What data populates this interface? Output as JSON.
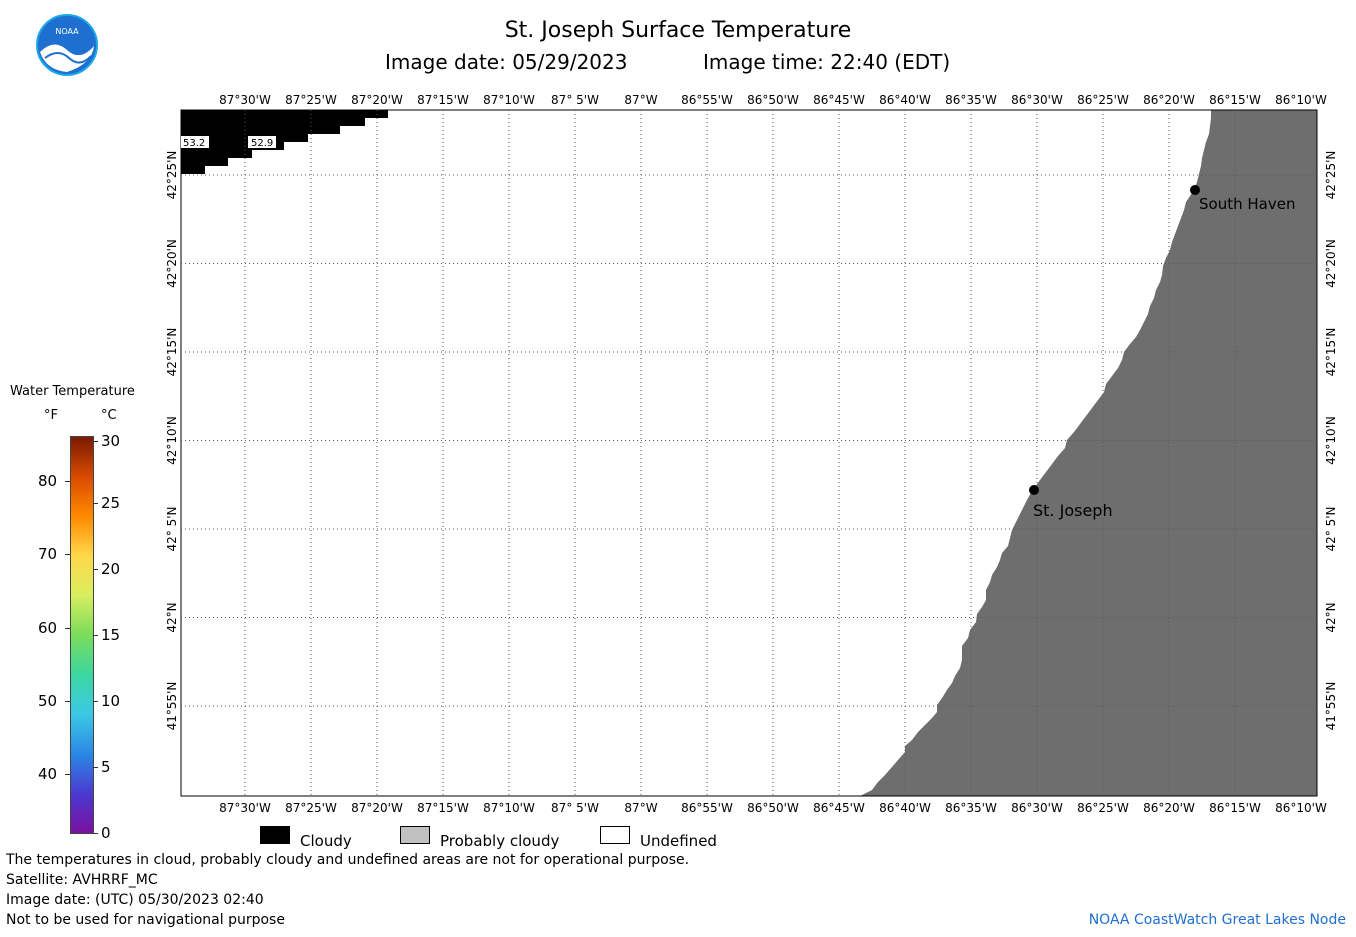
{
  "header": {
    "title": "St. Joseph Surface Temperature",
    "image_date_label": "Image date: 05/29/2023",
    "image_time_label": "Image time: 22:40 (EDT)",
    "logo_text": "NOAA"
  },
  "map": {
    "lon_labels": [
      "87°30'W",
      "87°25'W",
      "87°20'W",
      "87°15'W",
      "87°10'W",
      "87° 5'W",
      "87°W",
      "86°55'W",
      "86°50'W",
      "86°45'W",
      "86°40'W",
      "86°35'W",
      "86°30'W",
      "86°25'W",
      "86°20'W",
      "86°15'W",
      "86°10'W"
    ],
    "lat_labels": [
      "42°25'N",
      "42°20'N",
      "42°15'N",
      "42°10'N",
      "42° 5'N",
      "42°N",
      "41°55'N"
    ],
    "cities": [
      {
        "name": "South Haven"
      },
      {
        "name": "St. Joseph"
      }
    ],
    "cloud_values": [
      "53.2",
      "52.9"
    ],
    "colors": {
      "land": "#6e6e6e",
      "cloud": "#000000",
      "water": "#ffffff",
      "grid": "#555555"
    }
  },
  "legend": {
    "title": "Water Temperature",
    "unit_f": "°F",
    "unit_c": "°C",
    "f_ticks": [
      "80",
      "70",
      "60",
      "50",
      "40"
    ],
    "c_ticks": [
      "30",
      "25",
      "20",
      "15",
      "10",
      "5",
      "0"
    ],
    "gradient_colors": [
      "#7a1a00",
      "#d84a00",
      "#ff8a00",
      "#ffd84a",
      "#d8ee60",
      "#7adc5a",
      "#3cd7a0",
      "#3cc8e6",
      "#2a88e6",
      "#4a3ad0",
      "#7a10a0"
    ]
  },
  "key": {
    "cloudy": "Cloudy",
    "probably_cloudy": "Probably cloudy",
    "undefined": "Undefined"
  },
  "footer": {
    "disclaimer": "The temperatures in cloud, probably cloudy and undefined areas are not for operational purpose.",
    "satellite": "Satellite: AVHRRF_MC",
    "utc_date": "Image date: (UTC) 05/30/2023  02:40",
    "nav_warning": "Not to be used for navigational purpose",
    "credit": "NOAA CoastWatch Great Lakes Node"
  }
}
